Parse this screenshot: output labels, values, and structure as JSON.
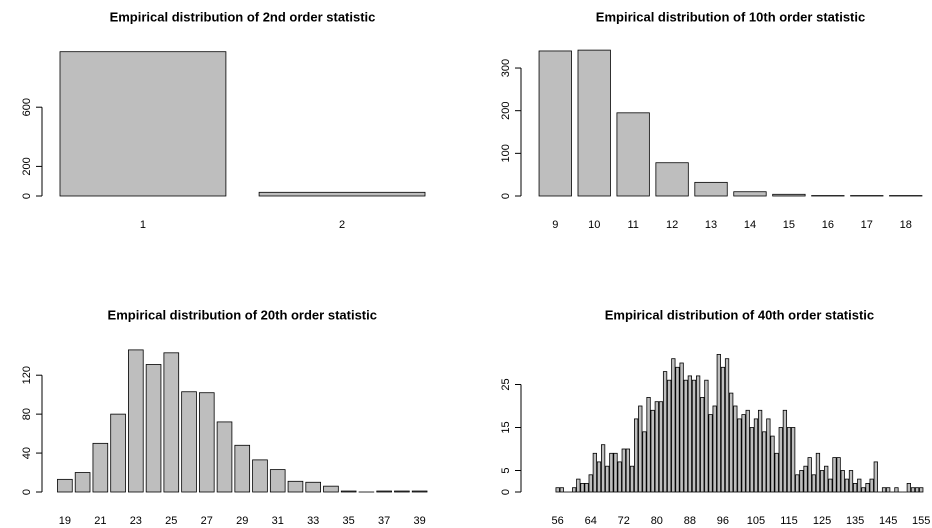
{
  "chart_data": [
    {
      "type": "bar",
      "title": "Empirical distribution of 2nd order statistic",
      "categories": [
        "1",
        "2"
      ],
      "values": [
        975,
        25
      ],
      "color": "#bebebe",
      "ylim": [
        0,
        1000
      ],
      "yticks": [
        0,
        200,
        600
      ]
    },
    {
      "type": "bar",
      "title": "Empirical distribution of 10th order statistic",
      "categories": [
        "9",
        "10",
        "11",
        "12",
        "13",
        "14",
        "15",
        "16",
        "17",
        "18"
      ],
      "values": [
        340,
        342,
        195,
        78,
        32,
        10,
        4,
        1,
        1,
        1
      ],
      "color": "#bebebe",
      "ylim": [
        0,
        350
      ],
      "yticks": [
        0,
        100,
        200,
        300
      ]
    },
    {
      "type": "bar",
      "title": "Empirical distribution of 20th order statistic",
      "categories": [
        "19",
        null,
        "21",
        null,
        "23",
        null,
        "25",
        null,
        "27",
        null,
        "29",
        null,
        "31",
        null,
        "33",
        null,
        "35",
        null,
        "37",
        null,
        "39"
      ],
      "values": [
        13,
        20,
        50,
        80,
        146,
        131,
        143,
        103,
        102,
        72,
        48,
        33,
        23,
        11,
        10,
        6,
        1,
        0,
        1,
        1,
        1
      ],
      "color": "#bebebe",
      "ylim": [
        0,
        150
      ],
      "yticks": [
        0,
        40,
        80,
        120
      ]
    },
    {
      "type": "bar",
      "title": "Empirical distribution of 40th order statistic",
      "categories": [
        "56",
        null,
        null,
        null,
        null,
        null,
        null,
        null,
        "64",
        null,
        null,
        null,
        null,
        null,
        null,
        null,
        "72",
        null,
        null,
        null,
        null,
        null,
        null,
        null,
        "80",
        null,
        null,
        null,
        null,
        null,
        null,
        null,
        "88",
        null,
        null,
        null,
        null,
        null,
        null,
        null,
        "96",
        null,
        null,
        null,
        null,
        null,
        null,
        null,
        "105",
        null,
        null,
        null,
        null,
        null,
        null,
        null,
        "115",
        null,
        null,
        null,
        null,
        null,
        null,
        null,
        "125",
        null,
        null,
        null,
        null,
        null,
        null,
        null,
        "135",
        null,
        null,
        null,
        null,
        null,
        null,
        null,
        "145",
        null,
        null,
        null,
        null,
        null,
        null,
        null,
        "155"
      ],
      "values": [
        1,
        1,
        0,
        0,
        1,
        3,
        2,
        2,
        4,
        9,
        7,
        11,
        6,
        9,
        9,
        7,
        10,
        10,
        6,
        17,
        20,
        14,
        22,
        19,
        21,
        21,
        28,
        26,
        31,
        29,
        30,
        26,
        27,
        26,
        27,
        22,
        26,
        18,
        20,
        32,
        29,
        31,
        23,
        20,
        17,
        18,
        19,
        15,
        17,
        19,
        14,
        17,
        13,
        9,
        15,
        19,
        15,
        15,
        4,
        5,
        6,
        8,
        4,
        9,
        5,
        6,
        3,
        8,
        8,
        5,
        3,
        5,
        2,
        3,
        1,
        2,
        3,
        7,
        0,
        1,
        1,
        0,
        1,
        0,
        0,
        2,
        1,
        1,
        1
      ],
      "color": "#bebebe",
      "ylim": [
        0,
        35
      ],
      "yticks": [
        0,
        5,
        15,
        25
      ]
    }
  ]
}
